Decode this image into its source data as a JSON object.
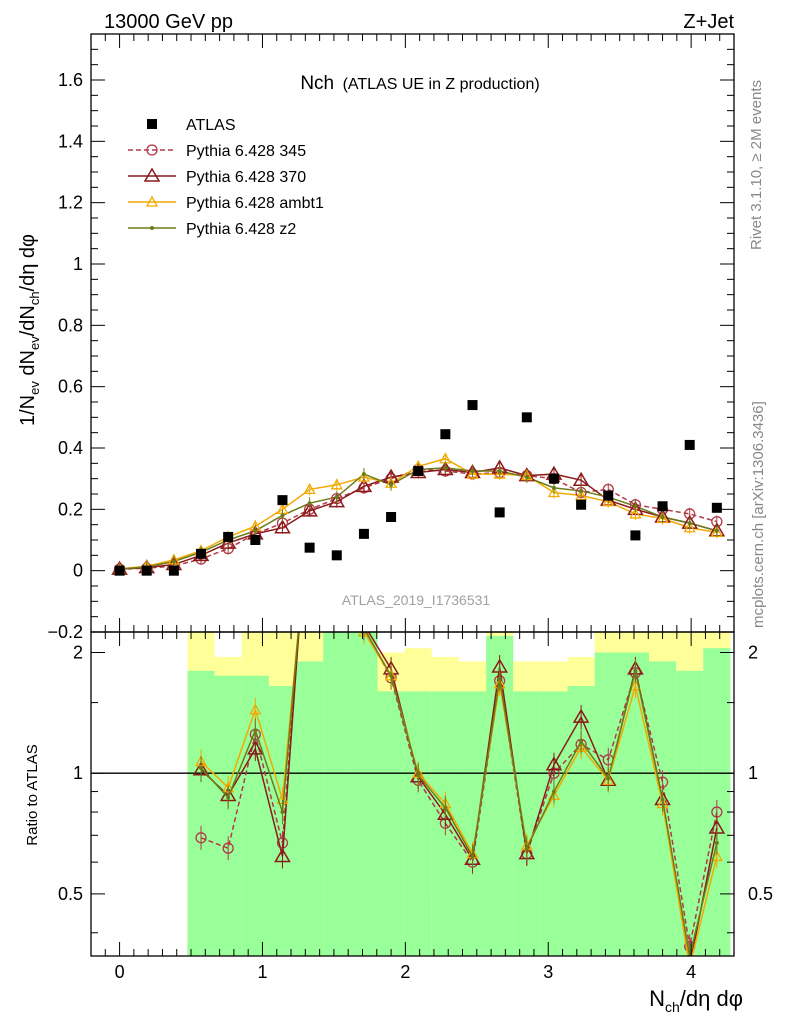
{
  "header": {
    "left": "13000 GeV pp",
    "right": "Z+Jet"
  },
  "side_labels": {
    "rivet": "Rivet 3.1.10, ≥ 2M events",
    "mcplots": "mcplots.cern.ch [arXiv:1306.3436]"
  },
  "analysis_id": "ATLAS_2019_I1736531",
  "chart_data": [
    {
      "type": "scatter",
      "panel": "main",
      "title_main": "Nch",
      "title_sub": "(ATLAS UE in Z production)",
      "ylabel": "1/N_ev dN_ev/dN_ch/dη dφ",
      "ylim": [
        -0.2,
        1.75
      ],
      "yticks": [
        -0.2,
        0,
        0.2,
        0.4,
        0.6,
        0.8,
        1,
        1.2,
        1.4,
        1.6
      ],
      "ytick_labels": [
        "−0.2",
        "0",
        "0.2",
        "0.4",
        "0.6",
        "0.8",
        "1",
        "1.2",
        "1.4",
        "1.6"
      ],
      "legend_position": "top-left",
      "x": [
        0.0,
        0.19,
        0.38,
        0.57,
        0.76,
        0.95,
        1.14,
        1.33,
        1.52,
        1.71,
        1.9,
        2.09,
        2.28,
        2.47,
        2.66,
        2.85,
        3.04,
        3.23,
        3.42,
        3.61,
        3.8,
        3.99,
        4.18
      ],
      "series": [
        {
          "name": "ATLAS",
          "color": "#000000",
          "marker": "square",
          "line": "none",
          "values": [
            0.0,
            0.0,
            0.0,
            0.055,
            0.11,
            0.1,
            0.23,
            0.075,
            0.05,
            0.12,
            0.175,
            0.325,
            0.445,
            0.54,
            0.19,
            0.5,
            0.3,
            0.215,
            0.245,
            0.115,
            0.21,
            0.41,
            0.205
          ]
        },
        {
          "name": "Pythia 6.428 345",
          "color": "#b03a48",
          "marker": "circle-open",
          "line": "dashed",
          "values": [
            0.005,
            0.008,
            0.015,
            0.038,
            0.072,
            0.12,
            0.155,
            0.2,
            0.235,
            0.27,
            0.3,
            0.33,
            0.325,
            0.315,
            0.32,
            0.31,
            0.3,
            0.255,
            0.265,
            0.215,
            0.2,
            0.185,
            0.16
          ]
        },
        {
          "name": "Pythia 6.428 370",
          "color": "#8b1a1a",
          "marker": "triangle-open",
          "line": "solid",
          "values": [
            0.005,
            0.01,
            0.02,
            0.05,
            0.09,
            0.12,
            0.14,
            0.195,
            0.225,
            0.275,
            0.305,
            0.32,
            0.33,
            0.32,
            0.335,
            0.31,
            0.315,
            0.295,
            0.23,
            0.2,
            0.175,
            0.155,
            0.13
          ]
        },
        {
          "name": "Pythia 6.428 ambt1",
          "color": "#f2a900",
          "marker": "triangle-open-small",
          "line": "solid",
          "values": [
            0.006,
            0.015,
            0.035,
            0.065,
            0.11,
            0.145,
            0.2,
            0.265,
            0.28,
            0.305,
            0.285,
            0.34,
            0.365,
            0.315,
            0.315,
            0.31,
            0.255,
            0.245,
            0.225,
            0.185,
            0.17,
            0.14,
            0.125
          ]
        },
        {
          "name": "Pythia 6.428 z2",
          "color": "#6b7d1a",
          "marker": "dot",
          "line": "solid",
          "values": [
            0.005,
            0.012,
            0.03,
            0.06,
            0.1,
            0.13,
            0.18,
            0.22,
            0.24,
            0.315,
            0.28,
            0.33,
            0.335,
            0.325,
            0.325,
            0.305,
            0.27,
            0.26,
            0.24,
            0.21,
            0.175,
            0.155,
            0.13
          ]
        }
      ]
    },
    {
      "type": "line",
      "panel": "ratio",
      "ylabel": "Ratio to ATLAS",
      "ylim": [
        0.35,
        2.25
      ],
      "yticks": [
        0.5,
        1,
        2
      ],
      "ytick_labels": [
        "0.5",
        "1",
        "2"
      ],
      "reference_line": 1,
      "xlabel": "N_ch/dη dφ",
      "xlim": [
        -0.2,
        4.3
      ],
      "xticks": [
        0,
        1,
        2,
        3,
        4
      ],
      "xtick_labels": [
        "0",
        "1",
        "2",
        "3",
        "4"
      ],
      "band_x_edges": [
        0.475,
        0.665,
        0.855,
        1.045,
        1.235,
        1.425,
        1.615,
        1.805,
        1.995,
        2.185,
        2.375,
        2.565,
        2.755,
        2.945,
        3.135,
        3.325,
        3.515,
        3.705,
        3.895,
        4.085,
        4.275
      ],
      "green_band": [
        [
          0.35,
          1.8
        ],
        [
          0.35,
          1.75
        ],
        [
          0.35,
          1.75
        ],
        [
          0.35,
          1.65
        ],
        [
          0.35,
          1.9
        ],
        [
          0.35,
          2.25
        ],
        [
          0.35,
          2.25
        ],
        [
          0.35,
          1.6
        ],
        [
          0.35,
          1.6
        ],
        [
          0.35,
          1.6
        ],
        [
          0.35,
          1.6
        ],
        [
          0.35,
          2.2
        ],
        [
          0.35,
          1.6
        ],
        [
          0.35,
          1.6
        ],
        [
          0.35,
          1.65
        ],
        [
          0.35,
          2.0
        ],
        [
          0.35,
          2.0
        ],
        [
          0.35,
          1.9
        ],
        [
          0.35,
          1.8
        ],
        [
          0.35,
          2.05
        ]
      ],
      "yellow_band": [
        [
          0.35,
          2.25
        ],
        [
          0.5,
          1.95
        ],
        [
          0.35,
          2.25
        ],
        [
          0.6,
          2.25
        ],
        [
          0.35,
          2.25
        ],
        [
          0.35,
          2.25
        ],
        [
          0.35,
          2.25
        ],
        [
          0.35,
          2.0
        ],
        [
          0.5,
          2.05
        ],
        [
          0.45,
          1.95
        ],
        [
          0.5,
          1.9
        ],
        [
          0.35,
          2.25
        ],
        [
          0.5,
          1.9
        ],
        [
          0.5,
          1.9
        ],
        [
          0.45,
          1.95
        ],
        [
          0.35,
          2.25
        ],
        [
          0.35,
          2.25
        ],
        [
          0.35,
          2.25
        ],
        [
          0.35,
          2.25
        ],
        [
          0.35,
          2.25
        ]
      ],
      "x": [
        0.57,
        0.76,
        0.95,
        1.14,
        1.71,
        1.9,
        2.09,
        2.28,
        2.47,
        2.66,
        2.85,
        3.04,
        3.23,
        3.42,
        3.61,
        3.8,
        3.99,
        4.18
      ],
      "series": [
        {
          "name": "Pythia 6.428 345",
          "color": "#b03a48",
          "line": "dashed",
          "values": [
            0.69,
            0.65,
            1.25,
            0.67,
            2.3,
            1.73,
            0.96,
            0.75,
            0.6,
            1.7,
            0.63,
            1.0,
            1.18,
            1.08,
            1.78,
            0.95,
            0.37,
            0.8
          ]
        },
        {
          "name": "Pythia 6.428 370",
          "color": "#8b1a1a",
          "line": "solid",
          "values": [
            1.02,
            0.88,
            1.15,
            0.62,
            2.35,
            1.82,
            0.98,
            0.79,
            0.61,
            1.84,
            0.63,
            1.05,
            1.38,
            0.96,
            1.82,
            0.86,
            0.33,
            0.73
          ]
        },
        {
          "name": "Pythia 6.428 ambt1",
          "color": "#f2a900",
          "line": "solid",
          "values": [
            1.07,
            0.92,
            1.44,
            0.86,
            2.25,
            1.75,
            1.0,
            0.84,
            0.63,
            1.67,
            0.66,
            0.88,
            1.16,
            0.96,
            1.65,
            0.84,
            0.33,
            0.62
          ]
        },
        {
          "name": "Pythia 6.428 z2",
          "color": "#6b7d1a",
          "line": "solid",
          "values": [
            1.03,
            0.87,
            1.28,
            0.8,
            2.3,
            1.75,
            0.99,
            0.82,
            0.62,
            1.72,
            0.65,
            0.9,
            1.2,
            0.97,
            1.8,
            0.86,
            0.35,
            0.67
          ]
        }
      ]
    }
  ]
}
